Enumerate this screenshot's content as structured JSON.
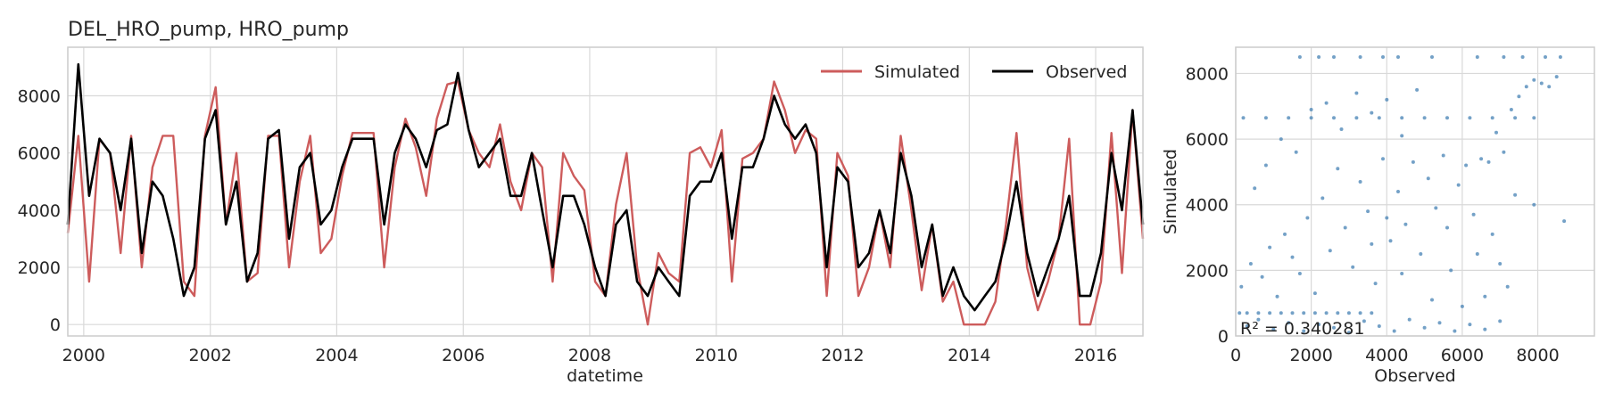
{
  "chart_data": [
    {
      "type": "line",
      "title": "DEL_HRO_pump, HRO_pump",
      "xlabel": "datetime",
      "ylabel": "",
      "xlim": [
        "1999-10-01",
        "2016-09-30"
      ],
      "ylim": [
        -400,
        9700
      ],
      "xticks": [
        "2000",
        "2002",
        "2004",
        "2006",
        "2008",
        "2010",
        "2012",
        "2014",
        "2016"
      ],
      "yticks": [
        "0",
        "2000",
        "4000",
        "6000",
        "8000"
      ],
      "grid": true,
      "legend": {
        "placement": "top-right",
        "columns": 2
      },
      "series": [
        {
          "name": "Simulated",
          "color": "#cd5c5c",
          "x": [
            "1999-10-01",
            "1999-12-01",
            "2000-02-01",
            "2000-04-01",
            "2000-06-01",
            "2000-08-01",
            "2000-10-01",
            "2000-12-01",
            "2001-02-01",
            "2001-04-01",
            "2001-06-01",
            "2001-08-01",
            "2001-10-01",
            "2001-12-01",
            "2002-02-01",
            "2002-04-01",
            "2002-06-01",
            "2002-08-01",
            "2002-10-01",
            "2002-12-01",
            "2003-02-01",
            "2003-04-01",
            "2003-06-01",
            "2003-08-01",
            "2003-10-01",
            "2003-12-01",
            "2004-02-01",
            "2004-04-01",
            "2004-06-01",
            "2004-08-01",
            "2004-10-01",
            "2004-12-01",
            "2005-02-01",
            "2005-04-01",
            "2005-06-01",
            "2005-08-01",
            "2005-10-01",
            "2005-12-01",
            "2006-02-01",
            "2006-04-01",
            "2006-06-01",
            "2006-08-01",
            "2006-10-01",
            "2006-12-01",
            "2007-02-01",
            "2007-04-01",
            "2007-06-01",
            "2007-08-01",
            "2007-10-01",
            "2007-12-01",
            "2008-02-01",
            "2008-04-01",
            "2008-06-01",
            "2008-08-01",
            "2008-10-01",
            "2008-12-01",
            "2009-02-01",
            "2009-04-01",
            "2009-06-01",
            "2009-08-01",
            "2009-10-01",
            "2009-12-01",
            "2010-02-01",
            "2010-04-01",
            "2010-06-01",
            "2010-08-01",
            "2010-10-01",
            "2010-12-01",
            "2011-02-01",
            "2011-04-01",
            "2011-06-01",
            "2011-08-01",
            "2011-10-01",
            "2011-12-01",
            "2012-02-01",
            "2012-04-01",
            "2012-06-01",
            "2012-08-01",
            "2012-10-01",
            "2012-12-01",
            "2013-02-01",
            "2013-04-01",
            "2013-06-01",
            "2013-08-01",
            "2013-10-01",
            "2013-12-01",
            "2014-02-01",
            "2014-04-01",
            "2014-06-01",
            "2014-08-01",
            "2014-10-01",
            "2014-12-01",
            "2015-02-01",
            "2015-04-01",
            "2015-06-01",
            "2015-08-01",
            "2015-10-01",
            "2015-12-01",
            "2016-02-01",
            "2016-04-01",
            "2016-06-01",
            "2016-08-01",
            "2016-09-30"
          ],
          "y": [
            3200,
            6600,
            1500,
            6500,
            6000,
            2500,
            6600,
            2000,
            5500,
            6600,
            6600,
            1500,
            1000,
            6600,
            8300,
            3500,
            6000,
            1500,
            1800,
            6600,
            6600,
            2000,
            5000,
            6600,
            2500,
            3000,
            5200,
            6700,
            6700,
            6700,
            2000,
            5500,
            7200,
            6200,
            4500,
            7200,
            8400,
            8500,
            6800,
            6000,
            5500,
            7000,
            5000,
            4000,
            6000,
            5500,
            1500,
            6000,
            5200,
            4700,
            1500,
            1000,
            4200,
            6000,
            2000,
            0,
            2500,
            1800,
            1500,
            6000,
            6200,
            5500,
            6800,
            1500,
            5800,
            6000,
            6500,
            8500,
            7500,
            6000,
            6800,
            6500,
            1000,
            6000,
            5200,
            1000,
            2000,
            4000,
            2000,
            6600,
            4000,
            1200,
            3500,
            800,
            1500,
            0,
            0,
            0,
            800,
            3500,
            6700,
            2000,
            500,
            1500,
            3000,
            6500,
            0,
            0,
            1500,
            6700,
            1800,
            7500,
            3000
          ]
        },
        {
          "name": "Observed",
          "color": "#000000",
          "x": [
            "1999-10-01",
            "1999-12-01",
            "2000-02-01",
            "2000-04-01",
            "2000-06-01",
            "2000-08-01",
            "2000-10-01",
            "2000-12-01",
            "2001-02-01",
            "2001-04-01",
            "2001-06-01",
            "2001-08-01",
            "2001-10-01",
            "2001-12-01",
            "2002-02-01",
            "2002-04-01",
            "2002-06-01",
            "2002-08-01",
            "2002-10-01",
            "2002-12-01",
            "2003-02-01",
            "2003-04-01",
            "2003-06-01",
            "2003-08-01",
            "2003-10-01",
            "2003-12-01",
            "2004-02-01",
            "2004-04-01",
            "2004-06-01",
            "2004-08-01",
            "2004-10-01",
            "2004-12-01",
            "2005-02-01",
            "2005-04-01",
            "2005-06-01",
            "2005-08-01",
            "2005-10-01",
            "2005-12-01",
            "2006-02-01",
            "2006-04-01",
            "2006-06-01",
            "2006-08-01",
            "2006-10-01",
            "2006-12-01",
            "2007-02-01",
            "2007-04-01",
            "2007-06-01",
            "2007-08-01",
            "2007-10-01",
            "2007-12-01",
            "2008-02-01",
            "2008-04-01",
            "2008-06-01",
            "2008-08-01",
            "2008-10-01",
            "2008-12-01",
            "2009-02-01",
            "2009-04-01",
            "2009-06-01",
            "2009-08-01",
            "2009-10-01",
            "2009-12-01",
            "2010-02-01",
            "2010-04-01",
            "2010-06-01",
            "2010-08-01",
            "2010-10-01",
            "2010-12-01",
            "2011-02-01",
            "2011-04-01",
            "2011-06-01",
            "2011-08-01",
            "2011-10-01",
            "2011-12-01",
            "2012-02-01",
            "2012-04-01",
            "2012-06-01",
            "2012-08-01",
            "2012-10-01",
            "2012-12-01",
            "2013-02-01",
            "2013-04-01",
            "2013-06-01",
            "2013-08-01",
            "2013-10-01",
            "2013-12-01",
            "2014-02-01",
            "2014-04-01",
            "2014-06-01",
            "2014-08-01",
            "2014-10-01",
            "2014-12-01",
            "2015-02-01",
            "2015-04-01",
            "2015-06-01",
            "2015-08-01",
            "2015-10-01",
            "2015-12-01",
            "2016-02-01",
            "2016-04-01",
            "2016-06-01",
            "2016-08-01",
            "2016-09-30"
          ],
          "y": [
            3500,
            9100,
            4500,
            6500,
            6000,
            4000,
            6500,
            2500,
            5000,
            4500,
            3000,
            1000,
            2000,
            6500,
            7500,
            3500,
            5000,
            1500,
            2500,
            6500,
            6800,
            3000,
            5500,
            6000,
            3500,
            4000,
            5500,
            6500,
            6500,
            6500,
            3500,
            6000,
            7000,
            6500,
            5500,
            6800,
            7000,
            8800,
            6800,
            5500,
            6000,
            6500,
            4500,
            4500,
            6000,
            4000,
            2000,
            4500,
            4500,
            3500,
            2000,
            1000,
            3500,
            4000,
            1500,
            1000,
            2000,
            1500,
            1000,
            4500,
            5000,
            5000,
            6000,
            3000,
            5500,
            5500,
            6500,
            8000,
            7000,
            6500,
            7000,
            6000,
            2000,
            5500,
            5000,
            2000,
            2500,
            4000,
            2500,
            6000,
            4500,
            2000,
            3500,
            1000,
            2000,
            1000,
            500,
            1000,
            1500,
            3000,
            5000,
            2500,
            1000,
            2000,
            3000,
            4500,
            1000,
            1000,
            2500,
            6000,
            4000,
            7500,
            3500
          ]
        }
      ]
    },
    {
      "type": "scatter",
      "xlabel": "Observed",
      "ylabel": "Simulated",
      "xlim": [
        0,
        9500
      ],
      "ylim": [
        0,
        8800
      ],
      "xticks": [
        "0",
        "2000",
        "4000",
        "6000",
        "8000"
      ],
      "yticks": [
        "0",
        "2000",
        "4000",
        "6000",
        "8000"
      ],
      "grid": true,
      "color": "#4682b4",
      "points": [
        [
          100,
          700
        ],
        [
          300,
          700
        ],
        [
          600,
          700
        ],
        [
          900,
          700
        ],
        [
          1200,
          700
        ],
        [
          1500,
          700
        ],
        [
          1800,
          700
        ],
        [
          2100,
          700
        ],
        [
          2400,
          700
        ],
        [
          2700,
          700
        ],
        [
          3000,
          700
        ],
        [
          3300,
          700
        ],
        [
          3600,
          700
        ],
        [
          200,
          6650
        ],
        [
          800,
          6650
        ],
        [
          1400,
          6650
        ],
        [
          2000,
          6650
        ],
        [
          2600,
          6650
        ],
        [
          3200,
          6650
        ],
        [
          3800,
          6650
        ],
        [
          4400,
          6650
        ],
        [
          5000,
          6650
        ],
        [
          5600,
          6650
        ],
        [
          6200,
          6650
        ],
        [
          6800,
          6650
        ],
        [
          7400,
          6650
        ],
        [
          7900,
          6650
        ],
        [
          1700,
          8500
        ],
        [
          2200,
          8500
        ],
        [
          2600,
          8500
        ],
        [
          3300,
          8500
        ],
        [
          3900,
          8500
        ],
        [
          4300,
          8500
        ],
        [
          5200,
          8500
        ],
        [
          6400,
          8500
        ],
        [
          7100,
          8500
        ],
        [
          7600,
          8500
        ],
        [
          8200,
          8500
        ],
        [
          8600,
          8500
        ],
        [
          150,
          1500
        ],
        [
          400,
          2200
        ],
        [
          700,
          1800
        ],
        [
          900,
          2700
        ],
        [
          1100,
          1200
        ],
        [
          1300,
          3100
        ],
        [
          1500,
          2400
        ],
        [
          1700,
          1900
        ],
        [
          1900,
          3600
        ],
        [
          2100,
          1300
        ],
        [
          2300,
          4200
        ],
        [
          2500,
          2600
        ],
        [
          2700,
          5100
        ],
        [
          2900,
          3300
        ],
        [
          3100,
          2100
        ],
        [
          3300,
          4700
        ],
        [
          3500,
          3800
        ],
        [
          3700,
          1600
        ],
        [
          3900,
          5400
        ],
        [
          4100,
          2900
        ],
        [
          4300,
          4400
        ],
        [
          4500,
          3400
        ],
        [
          4700,
          5300
        ],
        [
          4900,
          2500
        ],
        [
          5100,
          4800
        ],
        [
          5300,
          3900
        ],
        [
          5500,
          5500
        ],
        [
          5700,
          2000
        ],
        [
          5900,
          4600
        ],
        [
          6100,
          5200
        ],
        [
          6300,
          3700
        ],
        [
          6500,
          5400
        ],
        [
          6700,
          5300
        ],
        [
          6900,
          6200
        ],
        [
          7100,
          5600
        ],
        [
          7300,
          6900
        ],
        [
          7500,
          7300
        ],
        [
          7700,
          7600
        ],
        [
          7900,
          7800
        ],
        [
          8100,
          7700
        ],
        [
          8300,
          7600
        ],
        [
          8500,
          7900
        ],
        [
          8700,
          3500
        ],
        [
          7900,
          4000
        ],
        [
          500,
          4500
        ],
        [
          800,
          5200
        ],
        [
          1200,
          6000
        ],
        [
          1600,
          5600
        ],
        [
          2000,
          6900
        ],
        [
          2400,
          7100
        ],
        [
          2800,
          6300
        ],
        [
          3200,
          7400
        ],
        [
          3600,
          6800
        ],
        [
          4000,
          7200
        ],
        [
          4400,
          6100
        ],
        [
          4800,
          7500
        ],
        [
          300,
          300
        ],
        [
          600,
          500
        ],
        [
          1000,
          200
        ],
        [
          1400,
          400
        ],
        [
          1800,
          150
        ],
        [
          2200,
          350
        ],
        [
          2600,
          250
        ],
        [
          3000,
          100
        ],
        [
          3400,
          450
        ],
        [
          3800,
          300
        ],
        [
          4200,
          150
        ],
        [
          4600,
          500
        ],
        [
          5000,
          250
        ],
        [
          5400,
          400
        ],
        [
          5800,
          150
        ],
        [
          6200,
          350
        ],
        [
          6600,
          200
        ],
        [
          7000,
          450
        ],
        [
          6400,
          2500
        ],
        [
          6600,
          1200
        ],
        [
          6800,
          3100
        ],
        [
          7000,
          2200
        ],
        [
          7200,
          1500
        ],
        [
          7400,
          4300
        ],
        [
          5200,
          1100
        ],
        [
          5600,
          3300
        ],
        [
          6000,
          900
        ],
        [
          4400,
          1900
        ],
        [
          4000,
          3600
        ],
        [
          3600,
          2800
        ]
      ],
      "r2_label": "R² = 0.340281"
    }
  ]
}
